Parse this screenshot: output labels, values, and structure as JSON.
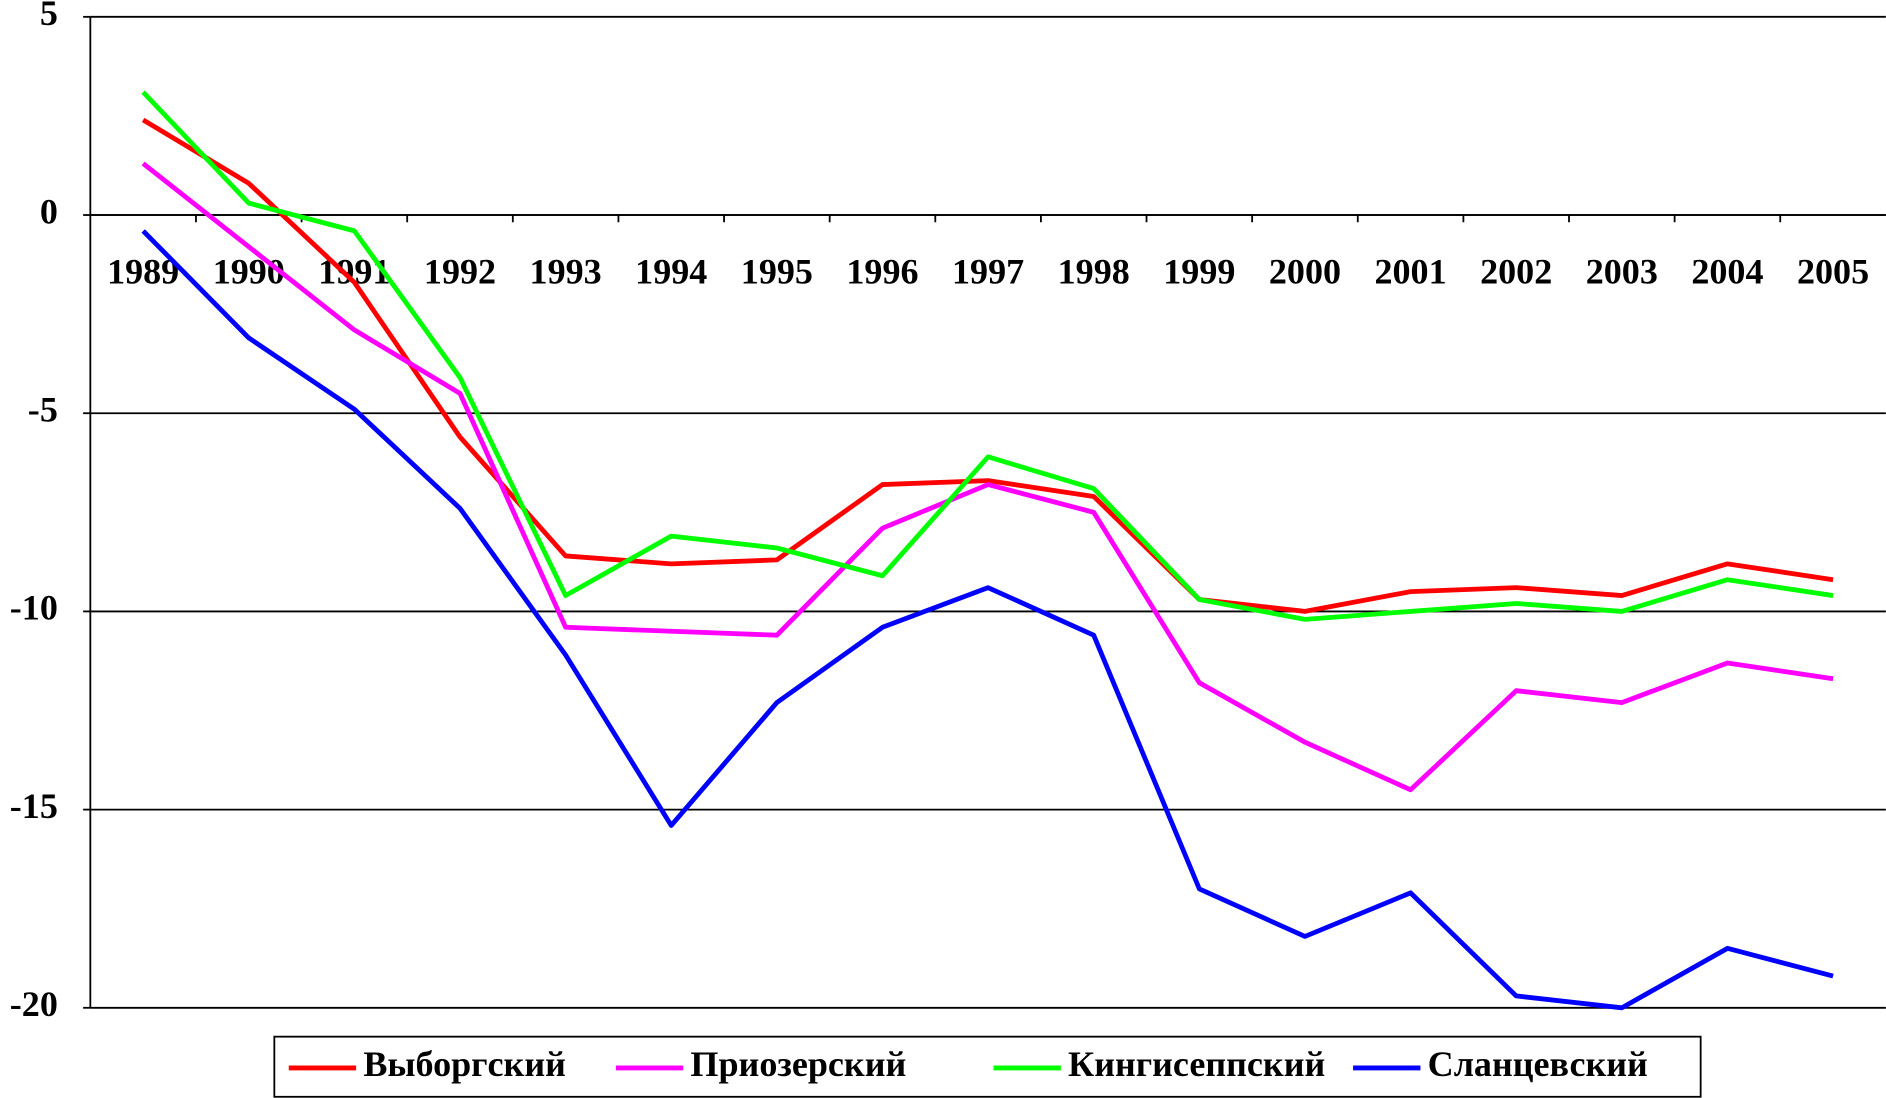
{
  "chart_data": {
    "type": "line",
    "categories": [
      "1989",
      "1990",
      "1991",
      "1992",
      "1993",
      "1994",
      "1995",
      "1996",
      "1997",
      "1998",
      "1999",
      "2000",
      "2001",
      "2002",
      "2003",
      "2004",
      "2005"
    ],
    "series": [
      {
        "name": "Выборгский",
        "color": "#ff0000",
        "values": [
          2.4,
          0.8,
          -1.7,
          -5.6,
          -8.6,
          -8.8,
          -8.7,
          -6.8,
          -6.7,
          -7.1,
          -9.7,
          -10.0,
          -9.5,
          -9.4,
          -9.6,
          -8.8,
          -9.2
        ]
      },
      {
        "name": "Приозерский",
        "color": "#ff00ff",
        "values": [
          1.3,
          -0.8,
          -2.9,
          -4.5,
          -10.4,
          -10.5,
          -10.6,
          -7.9,
          -6.8,
          -7.5,
          -11.8,
          -13.3,
          -14.5,
          -12.0,
          -12.3,
          -11.3,
          -11.7
        ]
      },
      {
        "name": "Кингисеппский",
        "color": "#00ff00",
        "values": [
          3.1,
          0.3,
          -0.4,
          -4.1,
          -9.6,
          -8.1,
          -8.4,
          -9.1,
          -6.1,
          -6.9,
          -9.7,
          -10.2,
          -10.0,
          -9.8,
          -10.0,
          -9.2,
          -9.6
        ]
      },
      {
        "name": "Сланцевский",
        "color": "#0000ff",
        "values": [
          -0.4,
          -3.1,
          -4.9,
          -7.4,
          -11.1,
          -15.4,
          -12.3,
          -10.4,
          -9.4,
          -10.6,
          -17.0,
          -18.2,
          -17.1,
          -19.7,
          -20.0,
          -18.5,
          -19.2
        ]
      }
    ],
    "ylim": [
      -20,
      5
    ],
    "yticks": [
      5,
      0,
      -5,
      -10,
      -15,
      -20
    ],
    "grid": true,
    "legend": "bottom"
  }
}
